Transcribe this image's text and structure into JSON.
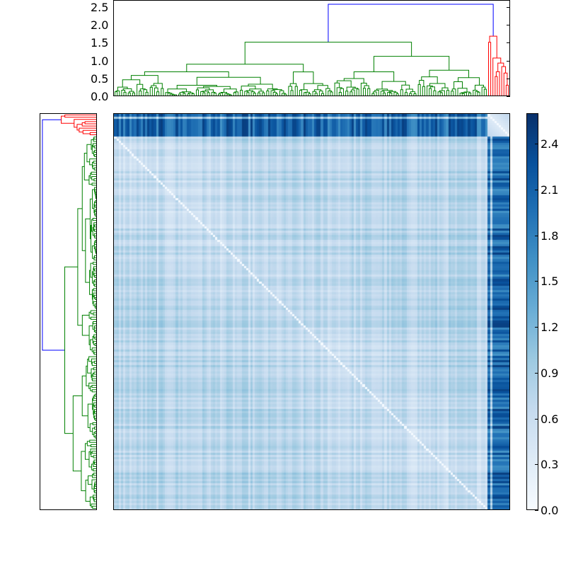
{
  "chart_data": {
    "type": "heatmap",
    "title": "",
    "description": "Clustered distance-matrix heatmap with hierarchical-clustering dendrograms on top and left, and a vertical colorbar",
    "colormap": "Blues",
    "top_dendrogram": {
      "ylabel": "",
      "yticks": [
        "0.0",
        "0.5",
        "1.0",
        "1.5",
        "2.0",
        "2.5"
      ],
      "ylim": [
        0,
        2.7
      ],
      "root_height": 2.6,
      "clusters": [
        {
          "name": "main cluster",
          "color": "#008000",
          "merge_height": 1.52
        },
        {
          "name": "outlier cluster",
          "color": "#ff0000",
          "merge_height": 1.69
        }
      ],
      "link_color_above_threshold": "#0000ff",
      "sub_merges": [
        1.15,
        1.13,
        1.02,
        0.78,
        0.73,
        0.55,
        0.42,
        0.8,
        0.52
      ]
    },
    "left_dendrogram": {
      "orientation": "left",
      "clusters": [
        {
          "name": "outlier cluster",
          "color": "#ff0000",
          "position": "top"
        },
        {
          "name": "main cluster",
          "color": "#008000",
          "position": "bottom"
        }
      ],
      "link_color_above_threshold": "#0000ff"
    },
    "heatmap": {
      "n_items_approx": 180,
      "diagonal_value": 0.0,
      "typical_within_cluster_range": [
        0.2,
        0.9
      ],
      "outlier_row_col_value_range": [
        1.6,
        2.6
      ],
      "outlier_block_position": "top rows / right columns"
    },
    "colorbar": {
      "ticks": [
        "0.0",
        "0.3",
        "0.6",
        "0.9",
        "1.2",
        "1.5",
        "1.8",
        "2.1",
        "2.4"
      ],
      "vmin": 0.0,
      "vmax": 2.6,
      "colors": [
        "#f7fbff",
        "#deebf7",
        "#c6dbef",
        "#9ecae1",
        "#6baed6",
        "#4292c6",
        "#2171b5",
        "#08519c",
        "#08306b"
      ]
    },
    "grid": false,
    "legend": null
  }
}
